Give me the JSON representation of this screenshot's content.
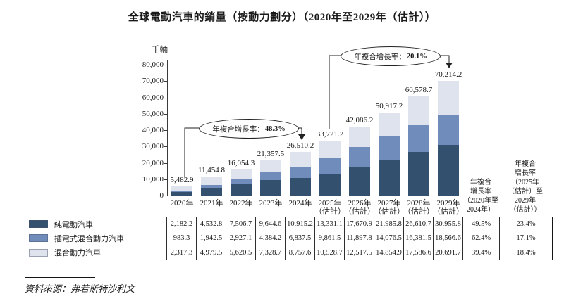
{
  "chart_data": {
    "type": "bar",
    "stacked": true,
    "title": "全球電動汽車的銷量（按動力劃分）（2020年至2029年（估計））",
    "ylabel": "千輛",
    "xlabel": "",
    "ylim": [
      0,
      80000
    ],
    "grid": false,
    "yticks": [
      "0",
      "10,000",
      "20,000",
      "30,000",
      "40,000",
      "50,000",
      "60,000",
      "70,000",
      "80,000"
    ],
    "categories": [
      {
        "label": "2020年",
        "sublabel": ""
      },
      {
        "label": "2021年",
        "sublabel": ""
      },
      {
        "label": "2022年",
        "sublabel": ""
      },
      {
        "label": "2023年",
        "sublabel": ""
      },
      {
        "label": "2024年",
        "sublabel": ""
      },
      {
        "label": "2025年",
        "sublabel": "（估計）"
      },
      {
        "label": "2026年",
        "sublabel": "（估計）"
      },
      {
        "label": "2027年",
        "sublabel": "（估計）"
      },
      {
        "label": "2028年",
        "sublabel": "（估計）"
      },
      {
        "label": "2029年",
        "sublabel": "（估計）"
      }
    ],
    "series": [
      {
        "name": "純電動汽車",
        "color": "#33506f",
        "values": [
          "2,182.2",
          "4,532.8",
          "7,506.7",
          "9,644.6",
          "10,915.2",
          "13,331.1",
          "17,670.9",
          "21,985.8",
          "26,610.7",
          "30,955.8"
        ]
      },
      {
        "name": "插電式混合動力汽車",
        "color": "#6f8cba",
        "values": [
          "983.3",
          "1,942.5",
          "2,927.1",
          "4,384.2",
          "6,837.5",
          "9,861.5",
          "11,897.8",
          "14,076.5",
          "16,381.5",
          "18,566.6"
        ]
      },
      {
        "name": "混合動力汽車",
        "color": "#dee3ee",
        "values": [
          "2,317.3",
          "4,979.5",
          "5,620.5",
          "7,328.7",
          "8,757.6",
          "10,528.7",
          "12,517.5",
          "14,854.9",
          "17,586.6",
          "20,691.7"
        ]
      }
    ],
    "totals": [
      "5,482.9",
      "11,454.8",
      "16,054.3",
      "21,357.5",
      "26,510.2",
      "33,721.2",
      "42,086.2",
      "50,917.2",
      "60,578.7",
      "70,214.2"
    ],
    "annotations": [
      {
        "label": "年複合增長率：",
        "value": "48.3%"
      },
      {
        "label": "年複合增長率：",
        "value": "20.1%"
      }
    ],
    "cagr_columns": [
      {
        "header_lines": "年複合\n增長率\n（2020年至\n2024年）",
        "values": [
          "49.5%",
          "62.4%",
          "39.4%"
        ]
      },
      {
        "header_lines": "年複合\n增長率\n（2025年\n（估計）至\n2029年\n（估計））",
        "values": [
          "23.4%",
          "17.1%",
          "18.4%"
        ]
      }
    ],
    "legend_position": "table-left"
  },
  "source": "資料來源：弗若斯特沙利文"
}
